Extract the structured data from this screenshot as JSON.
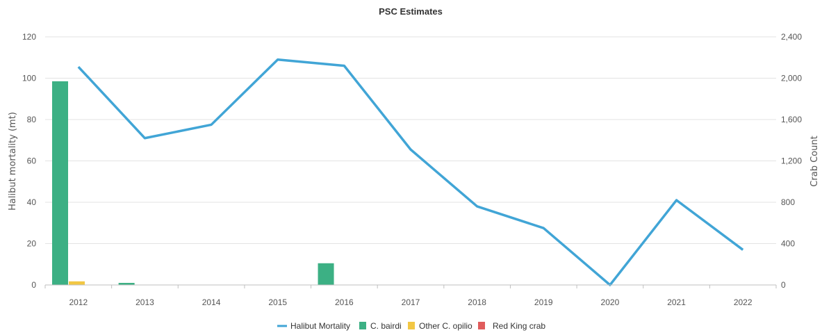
{
  "chart_data": {
    "type": "bar",
    "title": "PSC Estimates",
    "categories": [
      "2012",
      "2013",
      "2014",
      "2015",
      "2016",
      "2017",
      "2018",
      "2019",
      "2020",
      "2021",
      "2022"
    ],
    "y_left": {
      "label": "Halibut mortality (mt)",
      "lim": [
        0,
        120
      ],
      "ticks": [
        0,
        20,
        40,
        60,
        80,
        100,
        120
      ],
      "tick_labels": [
        "0",
        "20",
        "40",
        "60",
        "80",
        "100",
        "120"
      ]
    },
    "y_right": {
      "label": "Crab Count",
      "lim": [
        0,
        2400
      ],
      "ticks": [
        0,
        400,
        800,
        1200,
        1600,
        2000,
        2400
      ],
      "tick_labels": [
        "0",
        "400",
        "800",
        "1,200",
        "1,600",
        "2,000",
        "2,400"
      ]
    },
    "series": [
      {
        "name": "Halibut Mortality",
        "type": "line",
        "axis": "left",
        "color": "#41a5d6",
        "values": [
          105.5,
          71,
          77.5,
          109,
          106,
          65.5,
          38,
          27.5,
          0,
          41,
          17
        ]
      },
      {
        "name": "C. bairdi",
        "type": "bar",
        "axis": "right",
        "color": "#3cb084",
        "values": [
          1970,
          20,
          0,
          0,
          210,
          0,
          0,
          0,
          0,
          0,
          0
        ]
      },
      {
        "name": "Other C. opilio",
        "type": "bar",
        "axis": "right",
        "color": "#f2c744",
        "values": [
          35,
          0,
          0,
          0,
          0,
          0,
          0,
          0,
          0,
          0,
          0
        ]
      },
      {
        "name": "Red King crab",
        "type": "bar",
        "axis": "right",
        "color": "#e05c5c",
        "values": [
          0,
          0,
          0,
          0,
          0,
          0,
          0,
          0,
          0,
          0,
          0
        ]
      }
    ],
    "grid": true,
    "legend_position": "bottom-center"
  }
}
